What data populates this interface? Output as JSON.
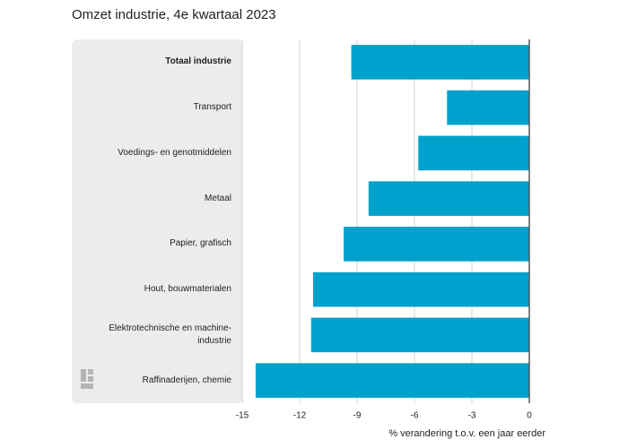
{
  "chart_data": {
    "type": "hbar",
    "title": "Omzet industrie, 4e kwartaal 2023",
    "x_label": "% verandering t.o.v. een jaar eerder",
    "categories": [
      "Totaal industrie",
      "Transport",
      "Voedings- en genotmiddelen",
      "Metaal",
      "Papier, grafisch",
      "Hout, bouwmaterialen",
      "Elektrotechnische en machine-\nindustrie",
      "Raffinaderijen, chemie"
    ],
    "values": [
      -9.3,
      -4.3,
      -5.8,
      -8.4,
      -9.7,
      -11.3,
      -11.4,
      -14.3
    ],
    "color": "#00a1cd",
    "xlim": [
      -15,
      0
    ],
    "xticks": [
      -15,
      -12,
      -9,
      -6,
      -3,
      0
    ],
    "grid": true
  }
}
